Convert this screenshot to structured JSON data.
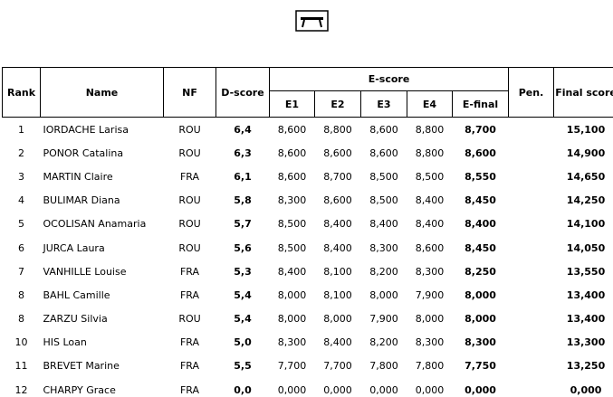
{
  "header": {
    "rank": "Rank",
    "name": "Name",
    "nf": "NF",
    "d_score": "D-score",
    "e_score": "E-score",
    "pen": "Pen.",
    "final_score": "Final score",
    "e_columns": [
      "E1",
      "E2",
      "E3",
      "E4",
      "E-final"
    ]
  },
  "rows": [
    [
      "1",
      "IORDACHE Larisa",
      "ROU",
      "6,4",
      "8,600",
      "8,800",
      "8,600",
      "8,800",
      "8,700",
      "15,100"
    ],
    [
      "2",
      "PONOR Catalina",
      "ROU",
      "6,3",
      "8,600",
      "8,600",
      "8,600",
      "8,800",
      "8,600",
      "14,900"
    ],
    [
      "3",
      "MARTIN Claire",
      "FRA",
      "6,1",
      "8,600",
      "8,700",
      "8,500",
      "8,500",
      "8,550",
      "14,650"
    ],
    [
      "4",
      "BULIMAR Diana",
      "ROU",
      "5,8",
      "8,300",
      "8,600",
      "8,500",
      "8,400",
      "8,450",
      "14,250"
    ],
    [
      "5",
      "OCOLISAN Anamaria",
      "ROU",
      "5,7",
      "8,500",
      "8,400",
      "8,400",
      "8,400",
      "8,400",
      "14,100"
    ],
    [
      "6",
      "JURCA Laura",
      "ROU",
      "5,6",
      "8,500",
      "8,400",
      "8,300",
      "8,600",
      "8,450",
      "14,050"
    ],
    [
      "7",
      "VANHILLE Louise",
      "FRA",
      "5,3",
      "8,400",
      "8,100",
      "8,200",
      "8,300",
      "8,250",
      "13,550"
    ],
    [
      "8",
      "BAHL Camille",
      "FRA",
      "5,4",
      "8,000",
      "8,100",
      "8,000",
      "7,900",
      "8,000",
      "13,400"
    ],
    [
      "8",
      "ZARZU Silvia",
      "ROU",
      "5,4",
      "8,000",
      "8,000",
      "7,900",
      "8,000",
      "8,000",
      "13,400"
    ],
    [
      "10",
      "HIS Loan",
      "FRA",
      "5,0",
      "8,300",
      "8,400",
      "8,200",
      "8,300",
      "8,300",
      "13,300"
    ],
    [
      "11",
      "BREVET Marine",
      "FRA",
      "5,5",
      "7,700",
      "7,700",
      "7,800",
      "7,800",
      "7,750",
      "13,250"
    ],
    [
      "12",
      "CHARPY Grace",
      "FRA",
      "0,0",
      "0,000",
      "0,000",
      "0,000",
      "0,000",
      "0,000",
      "0,000"
    ]
  ]
}
